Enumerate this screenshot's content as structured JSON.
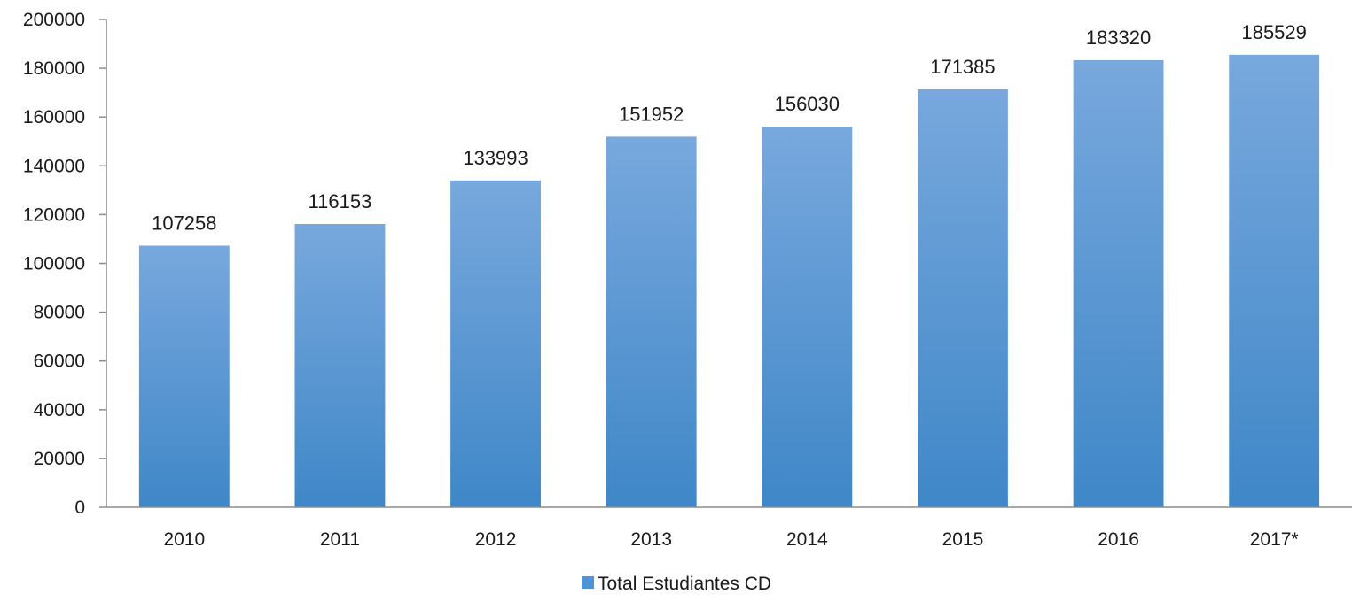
{
  "chart_data": {
    "type": "bar",
    "categories": [
      "2010",
      "2011",
      "2012",
      "2013",
      "2014",
      "2015",
      "2016",
      "2017*"
    ],
    "series": [
      {
        "name": "Total Estudiantes CD",
        "values": [
          107258,
          116153,
          133993,
          151952,
          156030,
          171385,
          183320,
          185529
        ]
      }
    ],
    "ylim": [
      0,
      200000
    ],
    "yticks": [
      0,
      20000,
      40000,
      60000,
      80000,
      100000,
      120000,
      140000,
      160000,
      180000,
      200000
    ],
    "grid": false,
    "data_labels": true,
    "legend_position": "bottom",
    "colors": {
      "bar_top": "#78a8dd",
      "bar_bottom": "#3f87c8",
      "axis": "#8c8c8c",
      "legend_swatch": "#4f94d6"
    }
  }
}
